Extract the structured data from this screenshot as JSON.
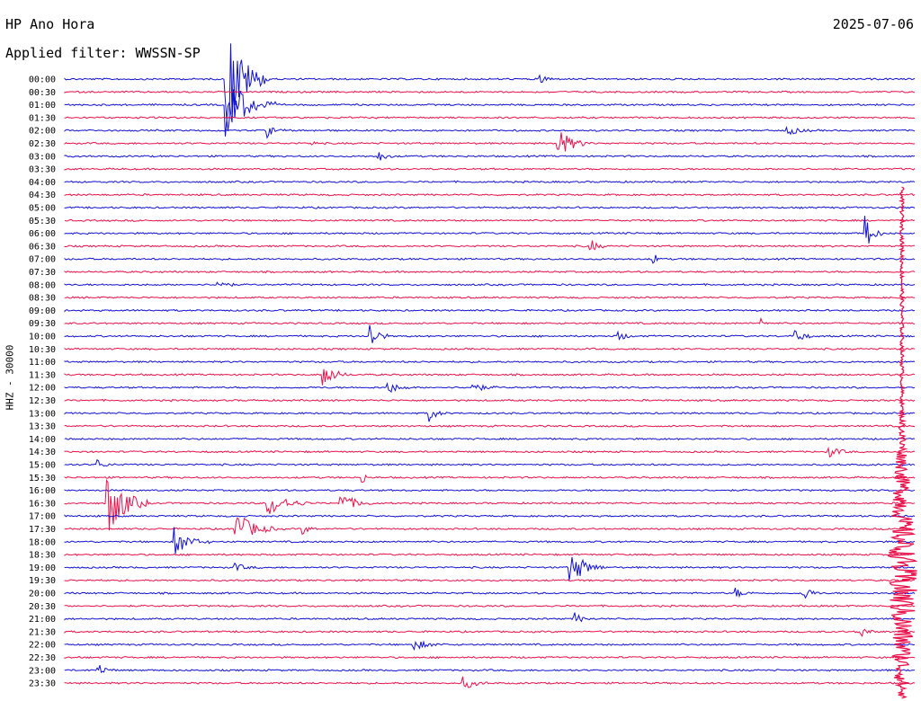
{
  "header": {
    "station": "HP Ano Hora",
    "filter": "Applied filter: WWSSN-SP",
    "date": "2025-07-06"
  },
  "channel_label": "HHZ - 30000",
  "colors": {
    "even": "#1010d0",
    "odd": "#e8104a"
  },
  "chart_data": {
    "type": "line",
    "title": "HP Ano Hora",
    "ylabel": "HHZ - 30000",
    "rows": [
      "00:00",
      "00:30",
      "01:00",
      "01:30",
      "02:00",
      "02:30",
      "03:00",
      "03:30",
      "04:00",
      "04:30",
      "05:00",
      "05:30",
      "06:00",
      "06:30",
      "07:00",
      "07:30",
      "08:00",
      "08:30",
      "09:00",
      "09:30",
      "10:00",
      "10:30",
      "11:00",
      "11:30",
      "12:00",
      "12:30",
      "13:00",
      "13:30",
      "14:00",
      "14:30",
      "15:00",
      "15:30",
      "16:00",
      "16:30",
      "17:00",
      "17:30",
      "18:00",
      "18:30",
      "19:00",
      "19:30",
      "20:00",
      "20:30",
      "21:00",
      "21:30",
      "22:00",
      "22:30",
      "23:00",
      "23:30"
    ],
    "row_colors": [
      "blue",
      "red"
    ],
    "events": [
      {
        "row": "00:00",
        "t": 0.19,
        "amp": 5.0,
        "dur": 0.05
      },
      {
        "row": "00:00",
        "t": 0.56,
        "amp": 0.4,
        "dur": 0.02
      },
      {
        "row": "01:00",
        "t": 0.19,
        "amp": 2.5,
        "dur": 0.06
      },
      {
        "row": "02:00",
        "t": 0.24,
        "amp": 0.4,
        "dur": 0.02
      },
      {
        "row": "02:00",
        "t": 0.85,
        "amp": 0.4,
        "dur": 0.03
      },
      {
        "row": "02:30",
        "t": 0.58,
        "amp": 1.2,
        "dur": 0.04
      },
      {
        "row": "02:30",
        "t": 0.29,
        "amp": 0.3,
        "dur": 0.01
      },
      {
        "row": "03:00",
        "t": 0.37,
        "amp": 0.4,
        "dur": 0.02
      },
      {
        "row": "06:00",
        "t": 0.943,
        "amp": 1.3,
        "dur": 0.02
      },
      {
        "row": "06:30",
        "t": 0.618,
        "amp": 0.6,
        "dur": 0.02
      },
      {
        "row": "07:00",
        "t": 0.693,
        "amp": 0.5,
        "dur": 0.01
      },
      {
        "row": "08:00",
        "t": 0.18,
        "amp": 0.6,
        "dur": 0.02
      },
      {
        "row": "09:30",
        "t": 0.82,
        "amp": 0.5,
        "dur": 0.01
      },
      {
        "row": "10:00",
        "t": 0.36,
        "amp": 1.3,
        "dur": 0.02
      },
      {
        "row": "10:00",
        "t": 0.86,
        "amp": 0.7,
        "dur": 0.02
      },
      {
        "row": "10:00",
        "t": 0.65,
        "amp": 0.5,
        "dur": 0.02
      },
      {
        "row": "11:30",
        "t": 0.305,
        "amp": 1.0,
        "dur": 0.03
      },
      {
        "row": "12:00",
        "t": 0.38,
        "amp": 0.5,
        "dur": 0.03
      },
      {
        "row": "12:00",
        "t": 0.48,
        "amp": 0.4,
        "dur": 0.03
      },
      {
        "row": "13:00",
        "t": 0.43,
        "amp": 0.6,
        "dur": 0.02
      },
      {
        "row": "14:30",
        "t": 0.9,
        "amp": 0.4,
        "dur": 0.03
      },
      {
        "row": "15:00",
        "t": 0.04,
        "amp": 0.3,
        "dur": 0.02
      },
      {
        "row": "15:30",
        "t": 0.35,
        "amp": 0.5,
        "dur": 0.01
      },
      {
        "row": "16:30",
        "t": 0.05,
        "amp": 2.8,
        "dur": 0.05
      },
      {
        "row": "16:30",
        "t": 0.24,
        "amp": 1.0,
        "dur": 0.05
      },
      {
        "row": "16:30",
        "t": 0.325,
        "amp": 0.8,
        "dur": 0.04
      },
      {
        "row": "17:30",
        "t": 0.2,
        "amp": 1.5,
        "dur": 0.05
      },
      {
        "row": "17:30",
        "t": 0.28,
        "amp": 0.4,
        "dur": 0.02
      },
      {
        "row": "18:00",
        "t": 0.13,
        "amp": 1.1,
        "dur": 0.04
      },
      {
        "row": "19:00",
        "t": 0.595,
        "amp": 1.5,
        "dur": 0.04
      },
      {
        "row": "19:00",
        "t": 0.2,
        "amp": 0.3,
        "dur": 0.03
      },
      {
        "row": "20:00",
        "t": 0.87,
        "amp": 0.6,
        "dur": 0.02
      },
      {
        "row": "20:00",
        "t": 0.79,
        "amp": 0.4,
        "dur": 0.02
      },
      {
        "row": "21:00",
        "t": 0.6,
        "amp": 0.5,
        "dur": 0.02
      },
      {
        "row": "21:30",
        "t": 0.935,
        "amp": 0.6,
        "dur": 0.02
      },
      {
        "row": "22:00",
        "t": 0.41,
        "amp": 0.4,
        "dur": 0.04
      },
      {
        "row": "23:00",
        "t": 0.04,
        "amp": 0.5,
        "dur": 0.02
      },
      {
        "row": "23:30",
        "t": 0.47,
        "amp": 0.5,
        "dur": 0.03
      }
    ],
    "large_event": {
      "row": "19:30",
      "t": 0.985
    }
  }
}
